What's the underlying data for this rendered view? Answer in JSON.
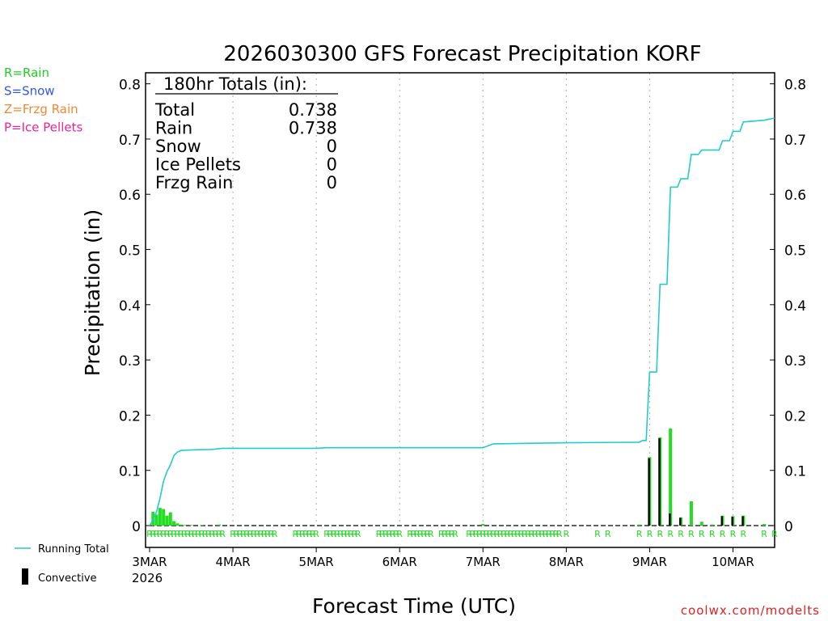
{
  "chart_data": {
    "type": "bar",
    "title": "2026030300 GFS Forecast Precipitation KORF",
    "xlabel": "Forecast Time (UTC)",
    "ylabel": "Precipitation (in)",
    "ylim": [
      0,
      0.82
    ],
    "yticks": [
      {
        "v": 0,
        "l": "0"
      },
      {
        "v": 0.1,
        "l": "0.1"
      },
      {
        "v": 0.2,
        "l": "0.2"
      },
      {
        "v": 0.3,
        "l": "0.3"
      },
      {
        "v": 0.4,
        "l": "0.4"
      },
      {
        "v": 0.5,
        "l": "0.5"
      },
      {
        "v": 0.6,
        "l": "0.6"
      },
      {
        "v": 0.7,
        "l": "0.7"
      },
      {
        "v": 0.8,
        "l": "0.8"
      }
    ],
    "xlim_hours": [
      0,
      180
    ],
    "xticks": [
      {
        "h": 0,
        "l": "3MAR"
      },
      {
        "h": 24,
        "l": "4MAR"
      },
      {
        "h": 48,
        "l": "5MAR"
      },
      {
        "h": 72,
        "l": "6MAR"
      },
      {
        "h": 96,
        "l": "7MAR"
      },
      {
        "h": 120,
        "l": "8MAR"
      },
      {
        "h": 144,
        "l": "9MAR"
      },
      {
        "h": 168,
        "l": "10MAR"
      }
    ],
    "year_label": "2026",
    "legend_ptype": [
      {
        "label": "R=Rain",
        "color": "#22cc22"
      },
      {
        "label": "S=Snow",
        "color": "#3355ee"
      },
      {
        "label": "Z=Frzg Rain",
        "color": "#ee8833"
      },
      {
        "label": "P=Ice Pellets",
        "color": "#ee2299"
      }
    ],
    "legend_bottom": {
      "running_total": "Running Total",
      "convective": "Convective"
    },
    "totals_box": {
      "header": "180hr Totals (in):",
      "rows": [
        {
          "label": "Total",
          "value": "0.738"
        },
        {
          "label": "Rain",
          "value": "0.738"
        },
        {
          "label": "Snow",
          "value": "0"
        },
        {
          "label": "Ice Pellets",
          "value": "0"
        },
        {
          "label": "Frzg Rain",
          "value": "0"
        }
      ]
    },
    "credit": "coolwx.com/modelts",
    "colors": {
      "rain": "#22dd22",
      "convective": "#000000",
      "running_total": "#22cccc",
      "grid": "#aaaaaa",
      "credit": "#dd2222"
    },
    "series_bars": [
      {
        "h": 1,
        "v": 0.025,
        "conv": 0
      },
      {
        "h": 2,
        "v": 0.02,
        "conv": 0
      },
      {
        "h": 3,
        "v": 0.032,
        "conv": 0
      },
      {
        "h": 4,
        "v": 0.03,
        "conv": 0
      },
      {
        "h": 5,
        "v": 0.018,
        "conv": 0
      },
      {
        "h": 6,
        "v": 0.024,
        "conv": 0
      },
      {
        "h": 7,
        "v": 0.008,
        "conv": 0
      },
      {
        "h": 8,
        "v": 0.004,
        "conv": 0
      },
      {
        "h": 9,
        "v": 0.002,
        "conv": 0
      },
      {
        "h": 10,
        "v": 0.001,
        "conv": 0
      },
      {
        "h": 12,
        "v": 0.001,
        "conv": 0
      },
      {
        "h": 15,
        "v": 0.001,
        "conv": 0
      },
      {
        "h": 20,
        "v": 0.002,
        "conv": 0
      },
      {
        "h": 96,
        "v": 0.003,
        "conv": 0
      },
      {
        "h": 141,
        "v": 0.002,
        "conv": 0
      },
      {
        "h": 144,
        "v": 0.124,
        "conv": 0.122
      },
      {
        "h": 147,
        "v": 0.16,
        "conv": 0.158
      },
      {
        "h": 150,
        "v": 0.176,
        "conv": 0.022
      },
      {
        "h": 153,
        "v": 0.015,
        "conv": 0.014
      },
      {
        "h": 156,
        "v": 0.044,
        "conv": 0
      },
      {
        "h": 159,
        "v": 0.007,
        "conv": 0
      },
      {
        "h": 162,
        "v": 0.002,
        "conv": 0
      },
      {
        "h": 165,
        "v": 0.018,
        "conv": 0.017
      },
      {
        "h": 168,
        "v": 0.017,
        "conv": 0.016
      },
      {
        "h": 171,
        "v": 0.018,
        "conv": 0.017
      },
      {
        "h": 177,
        "v": 0.003,
        "conv": 0
      }
    ],
    "running_total": [
      [
        0,
        0
      ],
      [
        1,
        0.01
      ],
      [
        2,
        0.025
      ],
      [
        3,
        0.05
      ],
      [
        4,
        0.08
      ],
      [
        5,
        0.098
      ],
      [
        6,
        0.11
      ],
      [
        7,
        0.127
      ],
      [
        8,
        0.133
      ],
      [
        9,
        0.136
      ],
      [
        12,
        0.137
      ],
      [
        18,
        0.138
      ],
      [
        21,
        0.14
      ],
      [
        48,
        0.14
      ],
      [
        51,
        0.141
      ],
      [
        96,
        0.141
      ],
      [
        99,
        0.148
      ],
      [
        120,
        0.15
      ],
      [
        141,
        0.151
      ],
      [
        142,
        0.154
      ],
      [
        143,
        0.154
      ],
      [
        144,
        0.278
      ],
      [
        146,
        0.278
      ],
      [
        147,
        0.437
      ],
      [
        149,
        0.437
      ],
      [
        150,
        0.613
      ],
      [
        152,
        0.613
      ],
      [
        153,
        0.628
      ],
      [
        155,
        0.628
      ],
      [
        156,
        0.672
      ],
      [
        158,
        0.672
      ],
      [
        159,
        0.68
      ],
      [
        164,
        0.68
      ],
      [
        165,
        0.697
      ],
      [
        167,
        0.697
      ],
      [
        168,
        0.714
      ],
      [
        170,
        0.714
      ],
      [
        171,
        0.731
      ],
      [
        177,
        0.734
      ],
      [
        180,
        0.738
      ]
    ],
    "ptype_row": {
      "symbol": "R",
      "dense_ranges": [
        [
          0,
          21
        ],
        [
          24,
          36
        ],
        [
          42,
          48
        ],
        [
          51,
          60
        ],
        [
          66,
          72
        ],
        [
          75,
          81
        ],
        [
          84,
          88
        ],
        [
          92,
          96
        ],
        [
          97,
          118
        ]
      ],
      "singles": [
        120,
        129,
        132,
        141,
        144,
        147,
        150,
        153,
        156,
        159,
        162,
        165,
        168,
        171,
        177,
        180
      ]
    }
  }
}
